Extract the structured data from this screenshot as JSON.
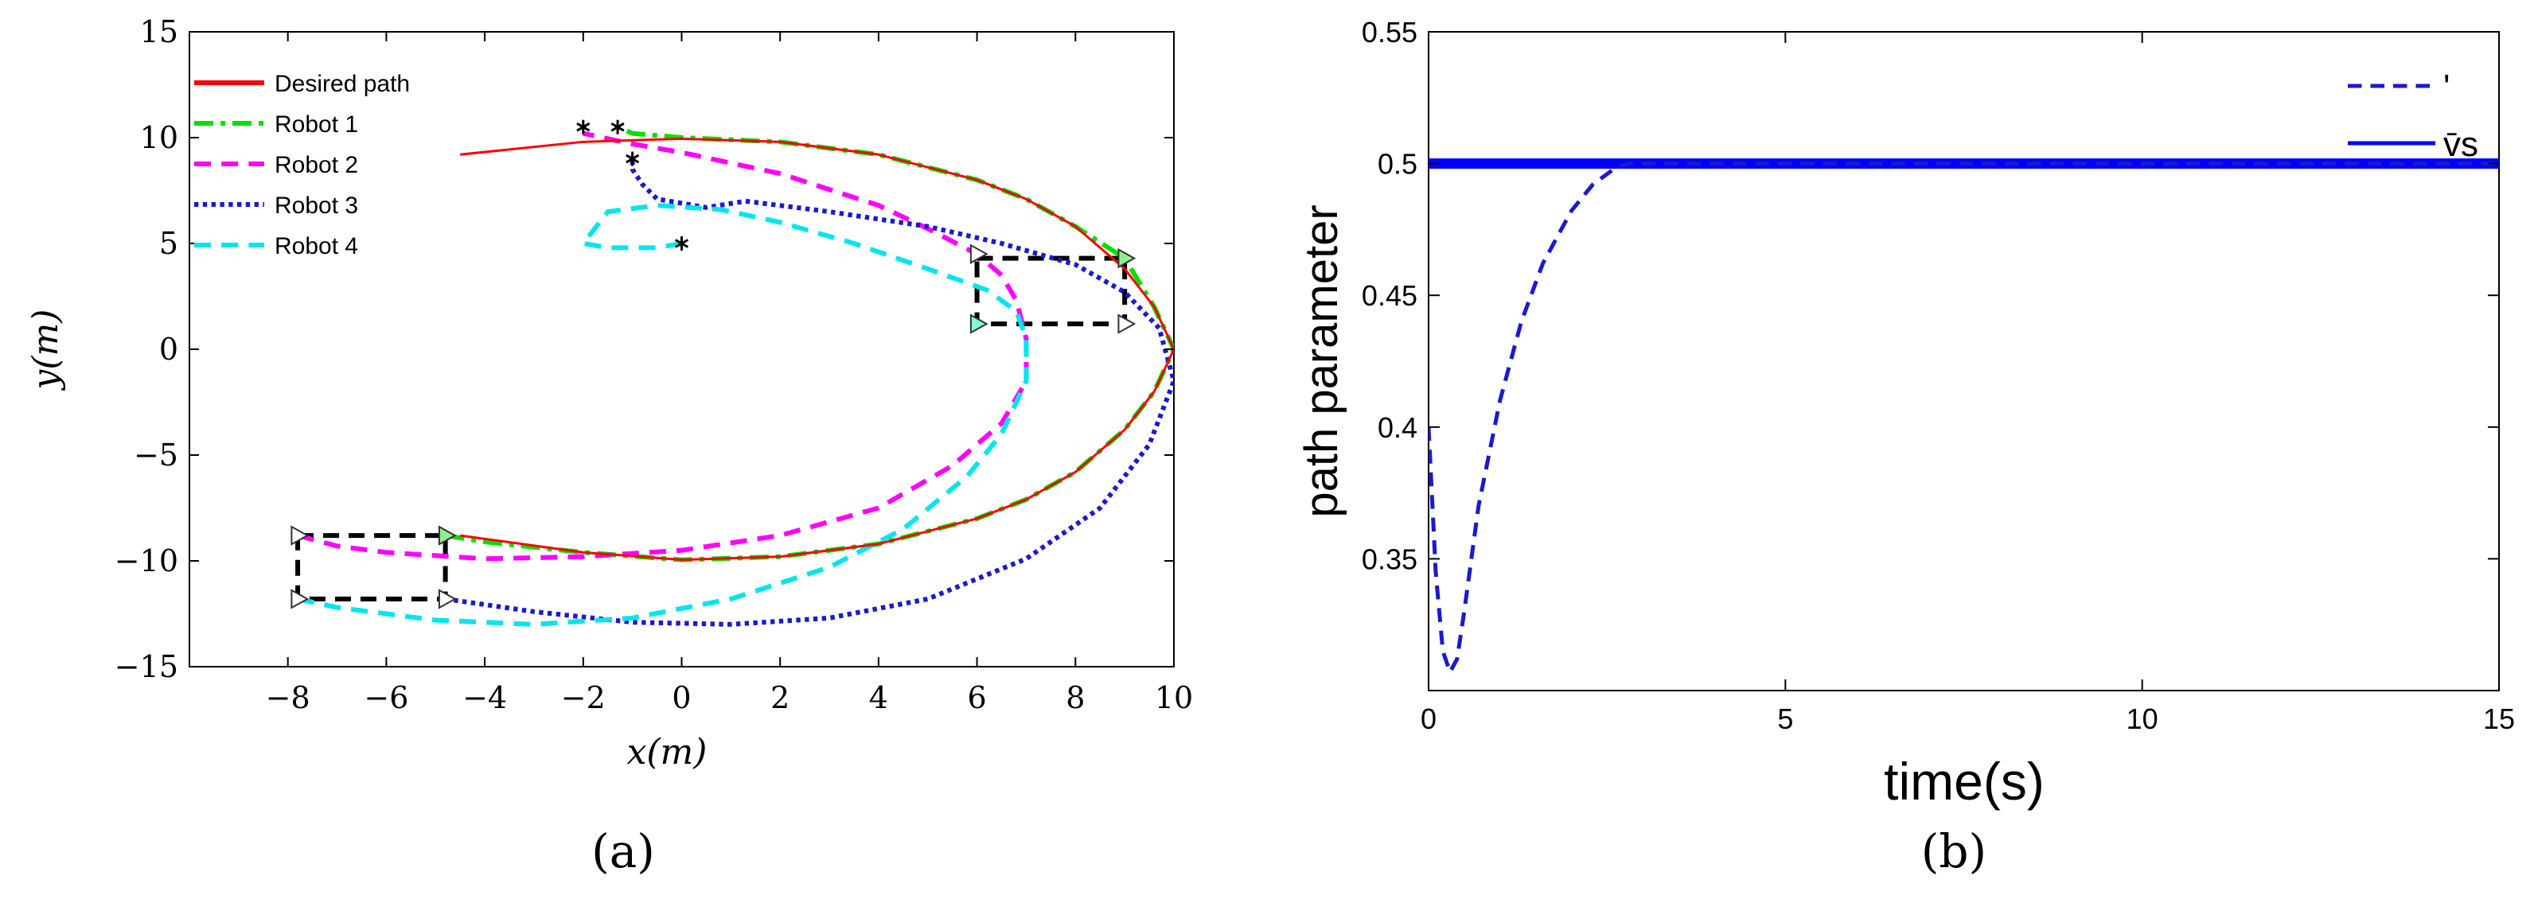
{
  "chart_data": [
    {
      "type": "line",
      "panel_label": "(a)",
      "xlabel": "x(m)",
      "ylabel": "y(m)",
      "xlim": [
        -10,
        10
      ],
      "ylim": [
        -15,
        15
      ],
      "xticks": [
        -8,
        -6,
        -4,
        -2,
        0,
        2,
        4,
        6,
        8,
        10
      ],
      "yticks": [
        -15,
        -10,
        -5,
        0,
        5,
        10,
        15
      ],
      "grid": false,
      "legend_position": "top-left",
      "series": [
        {
          "name": "Desired path",
          "color": "#ff0000",
          "style": "solid",
          "x": [
            -4.5,
            -2,
            0,
            2,
            4,
            6,
            7,
            8,
            9,
            9.6,
            10,
            9.6,
            9,
            8,
            7,
            6,
            4,
            2,
            0,
            -2,
            -4.5
          ],
          "y": [
            -8.8,
            -9.6,
            -9.95,
            -9.8,
            -9.2,
            -8,
            -7.1,
            -5.8,
            -3.8,
            -2,
            0,
            2,
            3.8,
            5.8,
            7.1,
            8,
            9.2,
            9.8,
            9.95,
            9.8,
            9.2
          ]
        },
        {
          "name": "Robot 1",
          "color": "#00e000",
          "style": "dashdot",
          "x": [
            -4.8,
            -4,
            -2,
            0,
            2,
            4,
            6,
            7,
            8,
            9,
            9.6,
            10,
            9.6,
            9,
            8,
            7,
            6,
            4,
            2,
            0,
            -1,
            -1.3
          ],
          "y": [
            -8.8,
            -9.1,
            -9.6,
            -9.95,
            -9.8,
            -9.2,
            -8,
            -7.1,
            -5.8,
            -3.8,
            -2,
            0,
            2,
            4.3,
            5.8,
            7.1,
            8,
            9.2,
            9.8,
            10,
            10.2,
            10.5
          ]
        },
        {
          "name": "Robot 2",
          "color": "#ff00ff",
          "style": "dashed",
          "x": [
            -7.8,
            -7,
            -6,
            -4,
            -2,
            0,
            2,
            4,
            5.5,
            6.5,
            7,
            7,
            6.8,
            6.5,
            6,
            5,
            4,
            2,
            0,
            -1,
            -2
          ],
          "y": [
            -8.8,
            -9.3,
            -9.6,
            -9.9,
            -9.8,
            -9.5,
            -8.8,
            -7.5,
            -5.5,
            -3.5,
            -1.5,
            0.5,
            2.3,
            3.5,
            4.5,
            5.7,
            6.8,
            8.3,
            9.3,
            9.7,
            10.2
          ]
        },
        {
          "name": "Robot 3",
          "color": "#1a1acd",
          "style": "dotted",
          "x": [
            -4.8,
            -3,
            -1,
            1,
            3,
            5,
            7,
            8.5,
            9.5,
            10,
            9.7,
            9,
            8,
            6.5,
            5,
            3,
            1.3,
            0.5,
            -0.5,
            -0.8,
            -1,
            -1
          ],
          "y": [
            -11.8,
            -12.4,
            -12.9,
            -13,
            -12.7,
            -11.8,
            -9.9,
            -7.5,
            -4.5,
            -1.5,
            1,
            2.7,
            4,
            5,
            5.8,
            6.5,
            7,
            6.7,
            7.1,
            7.8,
            8.5,
            9
          ]
        },
        {
          "name": "Robot 4",
          "color": "#00e5ee",
          "style": "dashed",
          "x": [
            -7.8,
            -7,
            -5,
            -3,
            -1,
            1,
            3,
            4.5,
            5.8,
            6.5,
            7,
            7,
            6.8,
            6.2,
            5,
            3.5,
            2,
            0.8,
            -0.5,
            -1.5,
            -2,
            -1.5,
            -0.5,
            0
          ],
          "y": [
            -11.8,
            -12.2,
            -12.8,
            -13,
            -12.7,
            -11.8,
            -10.3,
            -8.5,
            -6,
            -4,
            -1.5,
            0.5,
            1.8,
            2.8,
            3.8,
            5,
            6,
            6.6,
            6.8,
            6.5,
            5,
            4.8,
            4.8,
            5
          ]
        }
      ],
      "start_markers": [
        {
          "x": -2,
          "y": 10.5
        },
        {
          "x": -1.3,
          "y": 10.5
        },
        {
          "x": -1,
          "y": 9
        },
        {
          "x": 0,
          "y": 5
        }
      ],
      "triangle_markers": [
        {
          "x": -7.8,
          "y": -8.8,
          "color": "#ffffff"
        },
        {
          "x": -4.8,
          "y": -8.8,
          "color": "#90ee90"
        },
        {
          "x": -7.8,
          "y": -11.8,
          "color": "#ffffff"
        },
        {
          "x": -4.8,
          "y": -11.8,
          "color": "#ffffff"
        },
        {
          "x": 6,
          "y": 4.5,
          "color": "#ffffff"
        },
        {
          "x": 9,
          "y": 4.3,
          "color": "#90ee90"
        },
        {
          "x": 6,
          "y": 1.2,
          "color": "#7fffd4"
        },
        {
          "x": 9,
          "y": 1.2,
          "color": "#ffffff"
        }
      ],
      "formation_boxes": [
        {
          "x": [
            -7.8,
            -4.8
          ],
          "y": [
            -11.8,
            -8.8
          ]
        },
        {
          "x": [
            6,
            9
          ],
          "y": [
            1.2,
            4.3
          ]
        }
      ]
    },
    {
      "type": "line",
      "panel_label": "(b)",
      "xlabel": "time(s)",
      "ylabel": "path parameter",
      "xlim": [
        0,
        15
      ],
      "ylim": [
        0.3,
        0.55
      ],
      "xticks": [
        0,
        5,
        10,
        15
      ],
      "yticks": [
        0.35,
        0.4,
        0.45,
        0.5,
        0.55
      ],
      "grid": false,
      "legend_position": "top-right",
      "series": [
        {
          "name": "'",
          "color": "#1a1acd",
          "style": "dashed",
          "x": [
            0,
            0.1,
            0.2,
            0.3,
            0.4,
            0.5,
            0.7,
            1,
            1.3,
            1.6,
            2,
            2.3,
            2.6,
            2.8,
            15
          ],
          "y": [
            0.4,
            0.345,
            0.315,
            0.307,
            0.312,
            0.33,
            0.37,
            0.41,
            0.44,
            0.462,
            0.482,
            0.492,
            0.498,
            0.5,
            0.5
          ]
        },
        {
          "name": "v̄s",
          "color": "#0000ff",
          "style": "solid",
          "x": [
            0,
            15
          ],
          "y": [
            0.5,
            0.5
          ]
        }
      ]
    }
  ]
}
